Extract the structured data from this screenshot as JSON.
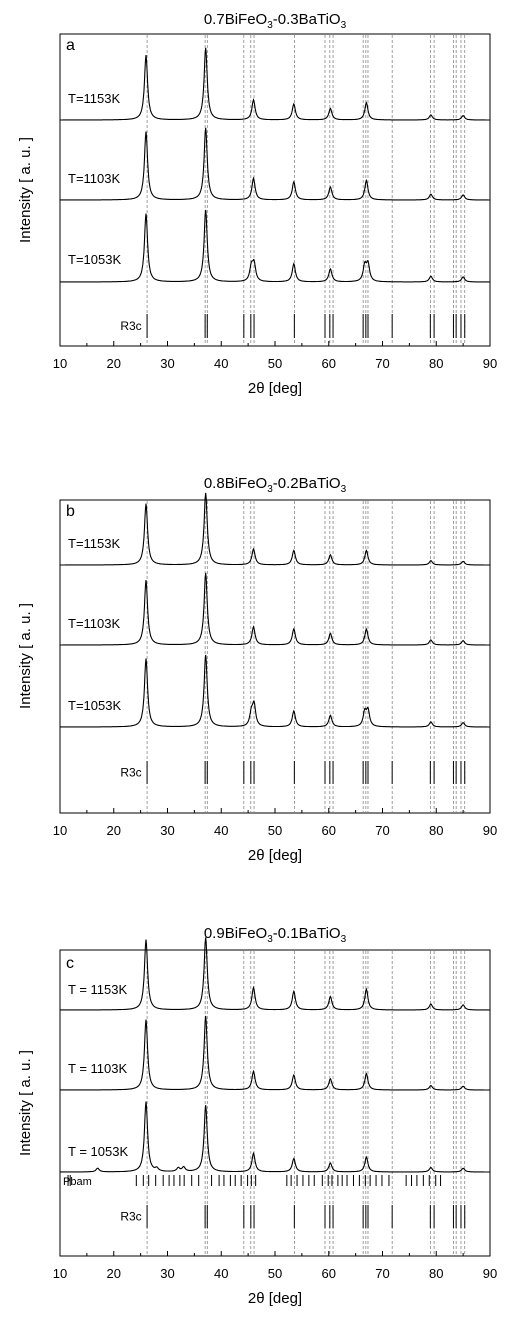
{
  "chart_data": [
    {
      "type": "line",
      "panel_label": "a",
      "title_parts": [
        "0.7BiFeO",
        "3",
        "-0.3BaTiO",
        "3"
      ],
      "xlabel_symbol": "2θ",
      "xlabel_unit": "[deg]",
      "ylabel": "Intensity [ a. u. ]",
      "xlim": [
        10,
        90
      ],
      "x_ticks": [
        "10",
        "20",
        "30",
        "40",
        "50",
        "60",
        "70",
        "80",
        "90"
      ],
      "series": [
        {
          "name": "T=1153K",
          "peaks": [
            [
              26.0,
              0.9
            ],
            [
              37.1,
              1.0
            ],
            [
              46.0,
              0.28
            ],
            [
              53.5,
              0.22
            ],
            [
              60.3,
              0.16
            ],
            [
              67.0,
              0.24
            ],
            [
              79.0,
              0.07
            ],
            [
              85.0,
              0.06
            ]
          ]
        },
        {
          "name": "T=1103K",
          "peaks": [
            [
              26.0,
              0.95
            ],
            [
              37.1,
              1.0
            ],
            [
              46.0,
              0.3
            ],
            [
              53.5,
              0.25
            ],
            [
              60.3,
              0.18
            ],
            [
              67.0,
              0.27
            ],
            [
              79.0,
              0.08
            ],
            [
              85.0,
              0.07
            ]
          ]
        },
        {
          "name": "T=1053K",
          "peaks": [
            [
              26.0,
              0.95
            ],
            [
              37.1,
              1.0
            ],
            [
              45.6,
              0.2
            ],
            [
              46.1,
              0.24
            ],
            [
              53.5,
              0.25
            ],
            [
              60.3,
              0.18
            ],
            [
              66.7,
              0.22
            ],
            [
              67.3,
              0.24
            ],
            [
              79.0,
              0.08
            ],
            [
              85.0,
              0.07
            ]
          ]
        }
      ],
      "reference_phases": [
        {
          "name": "R3c",
          "positions": [
            26.2,
            37.0,
            37.4,
            44.2,
            45.5,
            46.1,
            53.6,
            59.3,
            60.2,
            60.8,
            66.4,
            66.9,
            67.3,
            71.8,
            78.9,
            79.6,
            83.2,
            83.7,
            84.6,
            85.3
          ]
        }
      ],
      "guide_lines": [
        26.2,
        37.0,
        37.4,
        44.2,
        45.5,
        46.1,
        53.6,
        59.3,
        60.2,
        60.8,
        66.4,
        66.9,
        67.3,
        71.8,
        78.9,
        79.6,
        83.2,
        83.7,
        84.6,
        85.3
      ]
    },
    {
      "type": "line",
      "panel_label": "b",
      "title_parts": [
        "0.8BiFeO",
        "3",
        "-0.2BaTiO",
        "3"
      ],
      "xlabel_symbol": "2θ",
      "xlabel_unit": "[deg]",
      "ylabel": "Intensity [ a. u. ]",
      "xlim": [
        10,
        90
      ],
      "x_ticks": [
        "10",
        "20",
        "30",
        "40",
        "50",
        "60",
        "70",
        "80",
        "90"
      ],
      "series": [
        {
          "name": "T=1153K",
          "peaks": [
            [
              26.0,
              0.85
            ],
            [
              37.1,
              1.0
            ],
            [
              46.0,
              0.22
            ],
            [
              53.5,
              0.2
            ],
            [
              60.3,
              0.14
            ],
            [
              67.0,
              0.2
            ],
            [
              79.0,
              0.06
            ],
            [
              85.0,
              0.05
            ]
          ]
        },
        {
          "name": "T=1103K",
          "peaks": [
            [
              26.0,
              0.9
            ],
            [
              37.1,
              1.0
            ],
            [
              46.0,
              0.25
            ],
            [
              53.5,
              0.22
            ],
            [
              60.3,
              0.16
            ],
            [
              67.0,
              0.22
            ],
            [
              79.0,
              0.07
            ],
            [
              85.0,
              0.06
            ]
          ]
        },
        {
          "name": "T=1053K",
          "peaks": [
            [
              26.0,
              0.95
            ],
            [
              37.1,
              1.0
            ],
            [
              45.6,
              0.18
            ],
            [
              46.1,
              0.3
            ],
            [
              53.5,
              0.22
            ],
            [
              60.3,
              0.16
            ],
            [
              66.7,
              0.2
            ],
            [
              67.3,
              0.22
            ],
            [
              79.0,
              0.07
            ],
            [
              85.0,
              0.06
            ]
          ]
        }
      ],
      "reference_phases": [
        {
          "name": "R3c",
          "positions": [
            26.2,
            37.0,
            37.4,
            44.2,
            45.5,
            46.1,
            53.6,
            59.3,
            60.2,
            60.8,
            66.4,
            66.9,
            67.3,
            71.8,
            78.9,
            79.6,
            83.2,
            83.7,
            84.6,
            85.3
          ]
        }
      ],
      "guide_lines": [
        26.2,
        37.0,
        37.4,
        44.2,
        45.5,
        46.1,
        53.6,
        59.3,
        60.2,
        60.8,
        66.4,
        66.9,
        67.3,
        71.8,
        78.9,
        79.6,
        83.2,
        83.7,
        84.6,
        85.3
      ]
    },
    {
      "type": "line",
      "panel_label": "c",
      "title_parts": [
        "0.9BiFeO",
        "3",
        "-0.1BaTiO",
        "3"
      ],
      "xlabel_symbol": "2θ",
      "xlabel_unit": "[deg]",
      "ylabel": "Intensity [ a. u. ]",
      "xlim": [
        10,
        90
      ],
      "x_ticks": [
        "10",
        "20",
        "30",
        "40",
        "50",
        "60",
        "70",
        "80",
        "90"
      ],
      "series": [
        {
          "name": "T = 1153K",
          "peaks": [
            [
              26.0,
              0.95
            ],
            [
              37.1,
              0.98
            ],
            [
              46.0,
              0.3
            ],
            [
              53.5,
              0.25
            ],
            [
              60.3,
              0.18
            ],
            [
              67.0,
              0.28
            ],
            [
              79.0,
              0.08
            ],
            [
              85.0,
              0.07
            ]
          ]
        },
        {
          "name": "T = 1103K",
          "peaks": [
            [
              26.0,
              0.95
            ],
            [
              37.1,
              1.0
            ],
            [
              46.0,
              0.25
            ],
            [
              53.5,
              0.2
            ],
            [
              60.3,
              0.15
            ],
            [
              67.0,
              0.22
            ],
            [
              79.0,
              0.06
            ],
            [
              85.0,
              0.05
            ]
          ]
        },
        {
          "name": "T = 1053K",
          "peaks": [
            [
              17.0,
              0.05
            ],
            [
              26.0,
              0.95
            ],
            [
              28.0,
              0.04
            ],
            [
              32.0,
              0.05
            ],
            [
              33.0,
              0.06
            ],
            [
              37.1,
              0.9
            ],
            [
              46.0,
              0.25
            ],
            [
              53.5,
              0.18
            ],
            [
              60.3,
              0.12
            ],
            [
              67.0,
              0.2
            ],
            [
              79.0,
              0.06
            ],
            [
              85.0,
              0.05
            ]
          ]
        }
      ],
      "reference_phases": [
        {
          "name": "Pbam",
          "positions": [
            11.5,
            11.9,
            24.2,
            25.5,
            26.5,
            27.8,
            29.2,
            30.3,
            31.2,
            32.3,
            33.1,
            34.5,
            35.8,
            38.2,
            39.6,
            40.5,
            41.7,
            42.6,
            43.7,
            44.9,
            45.6,
            46.4,
            52.2,
            53.0,
            54.1,
            55.2,
            56.3,
            57.3,
            58.8,
            59.9,
            60.6,
            61.7,
            62.5,
            63.4,
            64.6,
            65.7,
            66.8,
            67.7,
            68.8,
            69.9,
            71.2,
            74.4,
            75.4,
            76.4,
            77.6,
            78.7,
            79.9,
            80.8
          ]
        },
        {
          "name": "R3c",
          "positions": [
            26.2,
            37.0,
            37.4,
            44.2,
            45.5,
            46.1,
            53.6,
            59.3,
            60.2,
            60.8,
            66.4,
            66.9,
            67.3,
            71.8,
            78.9,
            79.6,
            83.2,
            83.7,
            84.6,
            85.3
          ]
        }
      ],
      "guide_lines": [
        26.2,
        37.0,
        37.4,
        44.2,
        45.5,
        46.1,
        53.6,
        59.3,
        60.2,
        60.8,
        66.4,
        66.9,
        67.3,
        71.8,
        78.9,
        79.6,
        83.2,
        83.7,
        84.6,
        85.3
      ]
    }
  ]
}
